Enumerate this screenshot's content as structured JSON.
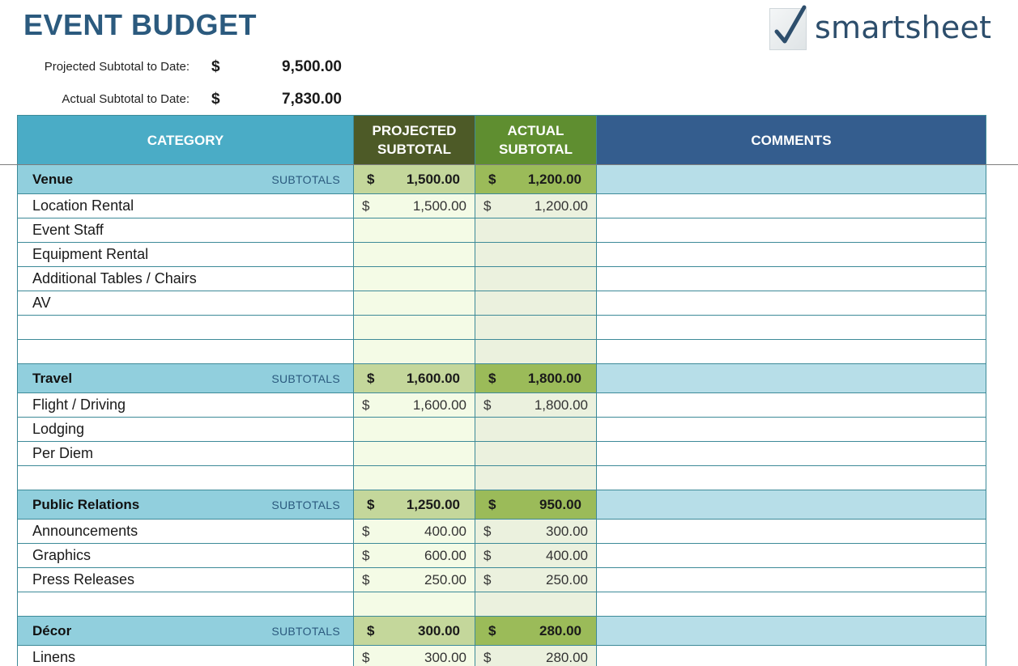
{
  "title": "EVENT BUDGET",
  "logo": {
    "text": "smartsheet",
    "icon": "checkmark-icon"
  },
  "summary": {
    "projected_label": "Projected Subtotal to Date:",
    "projected_currency": "$",
    "projected_value": "9,500.00",
    "actual_label": "Actual Subtotal to Date:",
    "actual_currency": "$",
    "actual_value": "7,830.00"
  },
  "headers": {
    "category": "CATEGORY",
    "projected_line1": "PROJECTED",
    "projected_line2": "SUBTOTAL",
    "actual_line1": "ACTUAL",
    "actual_line2": "SUBTOTAL",
    "comments": "COMMENTS"
  },
  "sections": [
    {
      "name": "Venue",
      "subtotals_label": "SUBTOTALS",
      "projected": "1,500.00",
      "actual": "1,200.00",
      "items": [
        {
          "name": "Location Rental",
          "projected": "1,500.00",
          "actual": "1,200.00"
        },
        {
          "name": "Event Staff"
        },
        {
          "name": "Equipment Rental"
        },
        {
          "name": "Additional Tables / Chairs"
        },
        {
          "name": "AV"
        },
        {
          "name": ""
        },
        {
          "name": ""
        }
      ]
    },
    {
      "name": "Travel",
      "subtotals_label": "SUBTOTALS",
      "projected": "1,600.00",
      "actual": "1,800.00",
      "items": [
        {
          "name": "Flight / Driving",
          "projected": "1,600.00",
          "actual": "1,800.00"
        },
        {
          "name": "Lodging"
        },
        {
          "name": "Per Diem"
        },
        {
          "name": ""
        }
      ]
    },
    {
      "name": "Public Relations",
      "subtotals_label": "SUBTOTALS",
      "projected": "1,250.00",
      "actual": "950.00",
      "items": [
        {
          "name": "Announcements",
          "projected": "400.00",
          "actual": "300.00"
        },
        {
          "name": "Graphics",
          "projected": "600.00",
          "actual": "400.00"
        },
        {
          "name": "Press Releases",
          "projected": "250.00",
          "actual": "250.00"
        },
        {
          "name": ""
        }
      ]
    },
    {
      "name": "Décor",
      "subtotals_label": "SUBTOTALS",
      "projected": "300.00",
      "actual": "280.00",
      "items": [
        {
          "name": "Linens",
          "projected": "300.00",
          "actual": "280.00"
        }
      ]
    }
  ],
  "currency_symbol": "$",
  "colors": {
    "title": "#2b5a7e",
    "header_category": "#4aacc6",
    "header_projected": "#4d5a27",
    "header_actual": "#5f8e30",
    "header_comments": "#345d8e",
    "section_row": "#91cfdd",
    "section_projected": "#c4d79b",
    "section_actual": "#9bbb59",
    "section_comments": "#b7dee8"
  }
}
